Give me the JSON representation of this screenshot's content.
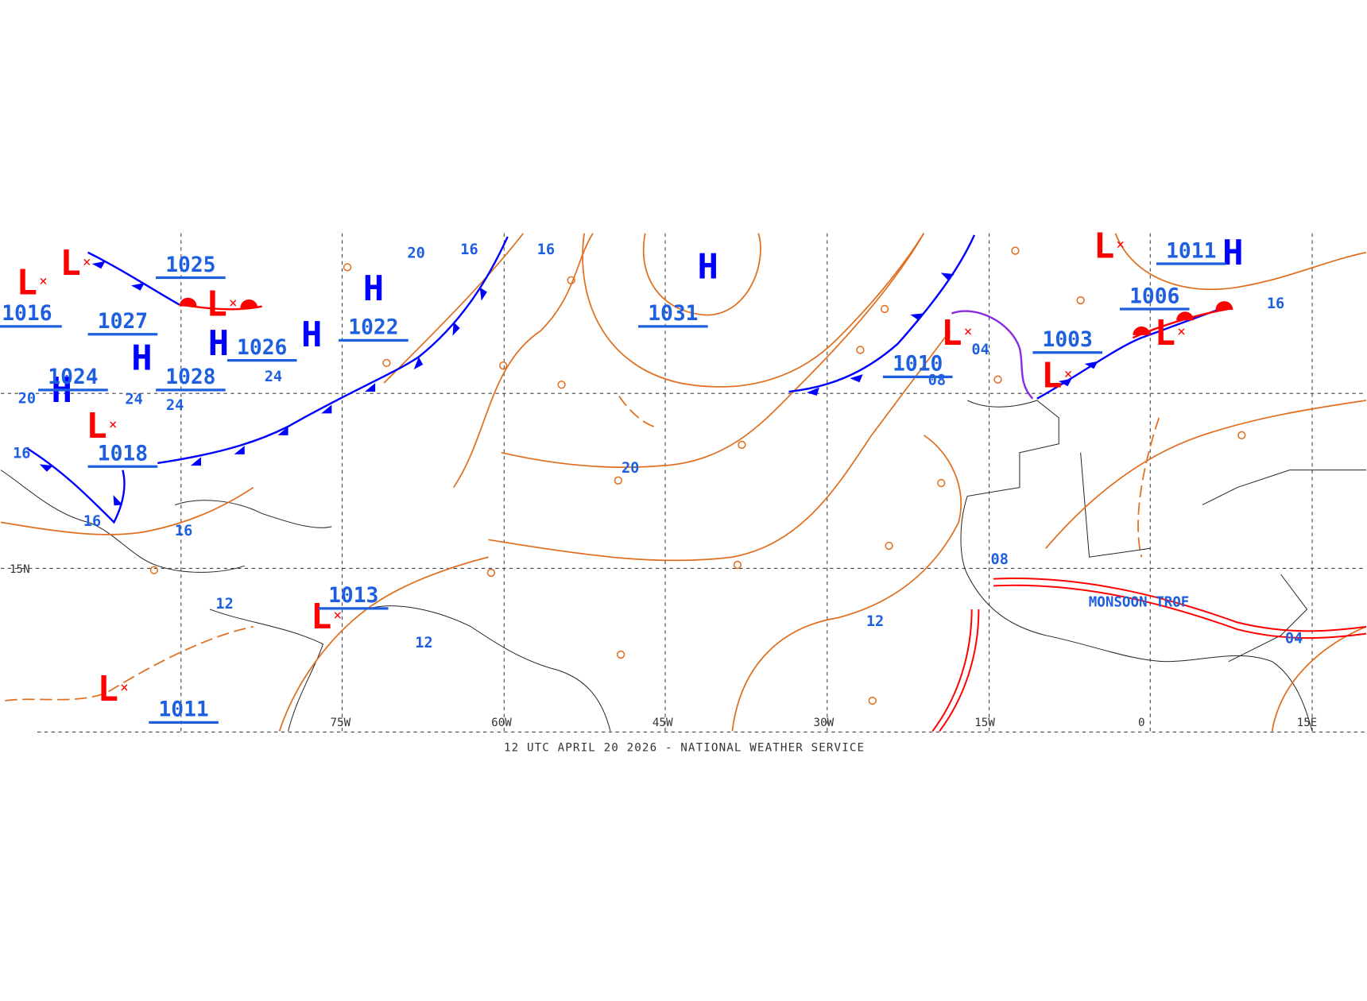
{
  "map": {
    "centers": [
      "H",
      "H",
      "H",
      "H",
      "H",
      "H",
      "H",
      "L",
      "L",
      "L",
      "L",
      "L",
      "L",
      "L",
      "L",
      "L",
      "L"
    ],
    "central_pressures": [
      "1031",
      "1022",
      "1026",
      "1028",
      "1027",
      "1025",
      "1024",
      "1018",
      "1013",
      "1011",
      "1010",
      "1003",
      "1006",
      "1011",
      "1016"
    ],
    "isobar_labels": [
      "20",
      "16",
      "16",
      "20",
      "12",
      "08",
      "04",
      "04",
      "16",
      "20",
      "16",
      "16",
      "12",
      "12",
      "24",
      "24",
      "24",
      "16",
      "08"
    ],
    "longitude_labels": [
      "75W",
      "60W",
      "45W",
      "30W",
      "15W",
      "0",
      "15E"
    ],
    "latitude_labels": [
      "15N"
    ],
    "annotations": [
      "MONSOON TROF"
    ],
    "footer": "12 UTC APRIL 20 2026 - NATIONAL WEATHER SERVICE"
  }
}
